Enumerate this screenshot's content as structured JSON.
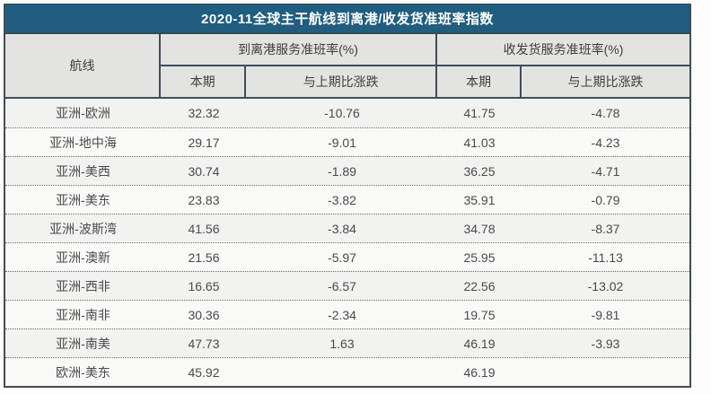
{
  "title": "2020-11全球主干航线到离港/收发货准班率指数",
  "header": {
    "route": "航线",
    "group1_label": "到离港服务准班率(%)",
    "group2_label": "收发货服务准班率(%)",
    "sub_current_1": "本期",
    "sub_change_1": "与上期比涨跌",
    "sub_current_2": "本期",
    "sub_change_2": "与上期比涨跌"
  },
  "colors": {
    "title_bar_bg": "#215d7e",
    "title_text": "#ffffff",
    "header_bg": "#e3e3e1",
    "grid_border": "#3f4e58",
    "row_odd_bg": "#f2f2f1",
    "row_even_bg": "#f9f9f8",
    "body_text": "#4a4a4a"
  },
  "chart_data": {
    "type": "table",
    "title": "2020-11全球主干航线到离港/收发货准班率指数",
    "column_groups": [
      {
        "label": "航线",
        "subcolumns": []
      },
      {
        "label": "到离港服务准班率(%)",
        "subcolumns": [
          "本期",
          "与上期比涨跌"
        ]
      },
      {
        "label": "收发货服务准班率(%)",
        "subcolumns": [
          "本期",
          "与上期比涨跌"
        ]
      }
    ],
    "rows": [
      [
        "亚洲-欧洲",
        32.32,
        -10.76,
        41.75,
        -4.78
      ],
      [
        "亚洲-地中海",
        29.17,
        -9.01,
        41.03,
        -4.23
      ],
      [
        "亚洲-美西",
        30.74,
        -1.89,
        36.25,
        -4.71
      ],
      [
        "亚洲-美东",
        23.83,
        -3.82,
        35.91,
        -0.79
      ],
      [
        "亚洲-波斯湾",
        41.56,
        -3.84,
        34.78,
        -8.37
      ],
      [
        "亚洲-澳新",
        21.56,
        -5.97,
        25.95,
        -11.13
      ],
      [
        "亚洲-西非",
        16.65,
        -6.57,
        22.56,
        -13.02
      ],
      [
        "亚洲-南非",
        30.36,
        -2.34,
        19.75,
        -9.81
      ],
      [
        "亚洲-南美",
        47.73,
        1.63,
        46.19,
        -3.93
      ],
      [
        "欧洲-美东",
        45.92,
        null,
        46.19,
        null
      ]
    ]
  }
}
